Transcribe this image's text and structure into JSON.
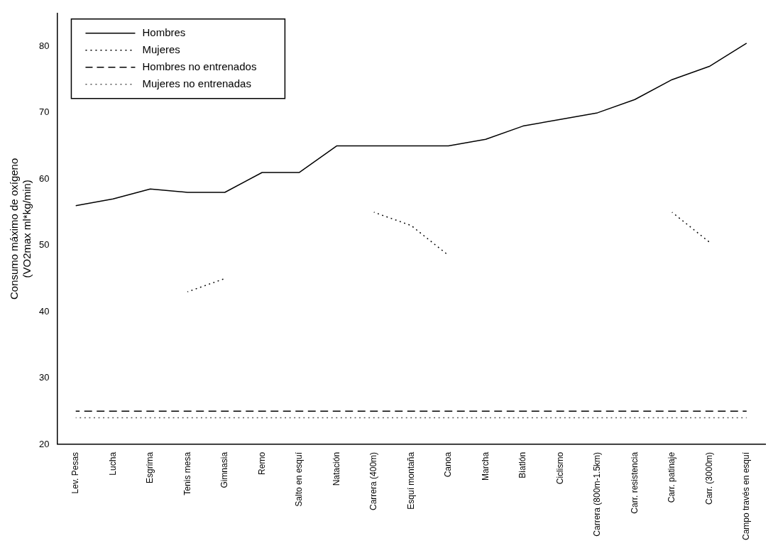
{
  "chart_data": {
    "type": "line",
    "ylabel": "Consumo máximo de oxígeno\n(VO2max ml*kg/min)",
    "categories": [
      "Lev. Pesas",
      "Lucha",
      "Esgrima",
      "Tenis mesa",
      "Gimnasia",
      "Remo",
      "Salto en esquí",
      "Natación",
      "Carrera (400m)",
      "Esquí montaña",
      "Canoa",
      "Marcha",
      "Biatlón",
      "Ciclismo",
      "Carrera (800m-1.5km)",
      "Carr. resistencia",
      "Carr. patinaje",
      "Carr. (3000m)",
      "Campo través en esquí"
    ],
    "series": [
      {
        "name": "Hombres",
        "color": "#000000",
        "line_style": "solid",
        "values": [
          56,
          57,
          58.5,
          58,
          58,
          61,
          61,
          65,
          65,
          65,
          65,
          66,
          68,
          69,
          70,
          72,
          75,
          77,
          80.5
        ]
      },
      {
        "name": "Mujeres",
        "color": "#000000",
        "line_style": "dotted",
        "values": [
          null,
          null,
          null,
          43,
          45,
          null,
          null,
          null,
          55,
          53,
          48.5,
          null,
          null,
          null,
          null,
          null,
          55,
          50.5,
          null
        ]
      },
      {
        "name": "Hombres no entrenados",
        "color": "#000000",
        "line_style": "dashed",
        "values": [
          25,
          25,
          25,
          25,
          25,
          25,
          25,
          25,
          25,
          25,
          25,
          25,
          25,
          25,
          25,
          25,
          25,
          25,
          25
        ]
      },
      {
        "name": "Mujeres no entrenadas",
        "color": "#555555",
        "line_style": "dotted",
        "values": [
          24,
          24,
          24,
          24,
          24,
          24,
          24,
          24,
          24,
          24,
          24,
          24,
          24,
          24,
          24,
          24,
          24,
          24,
          24
        ]
      }
    ],
    "ylim": [
      20,
      85
    ],
    "yticks": [
      20,
      30,
      40,
      50,
      60,
      70,
      80
    ],
    "grid": false,
    "legend": "top left",
    "marker": "none"
  }
}
